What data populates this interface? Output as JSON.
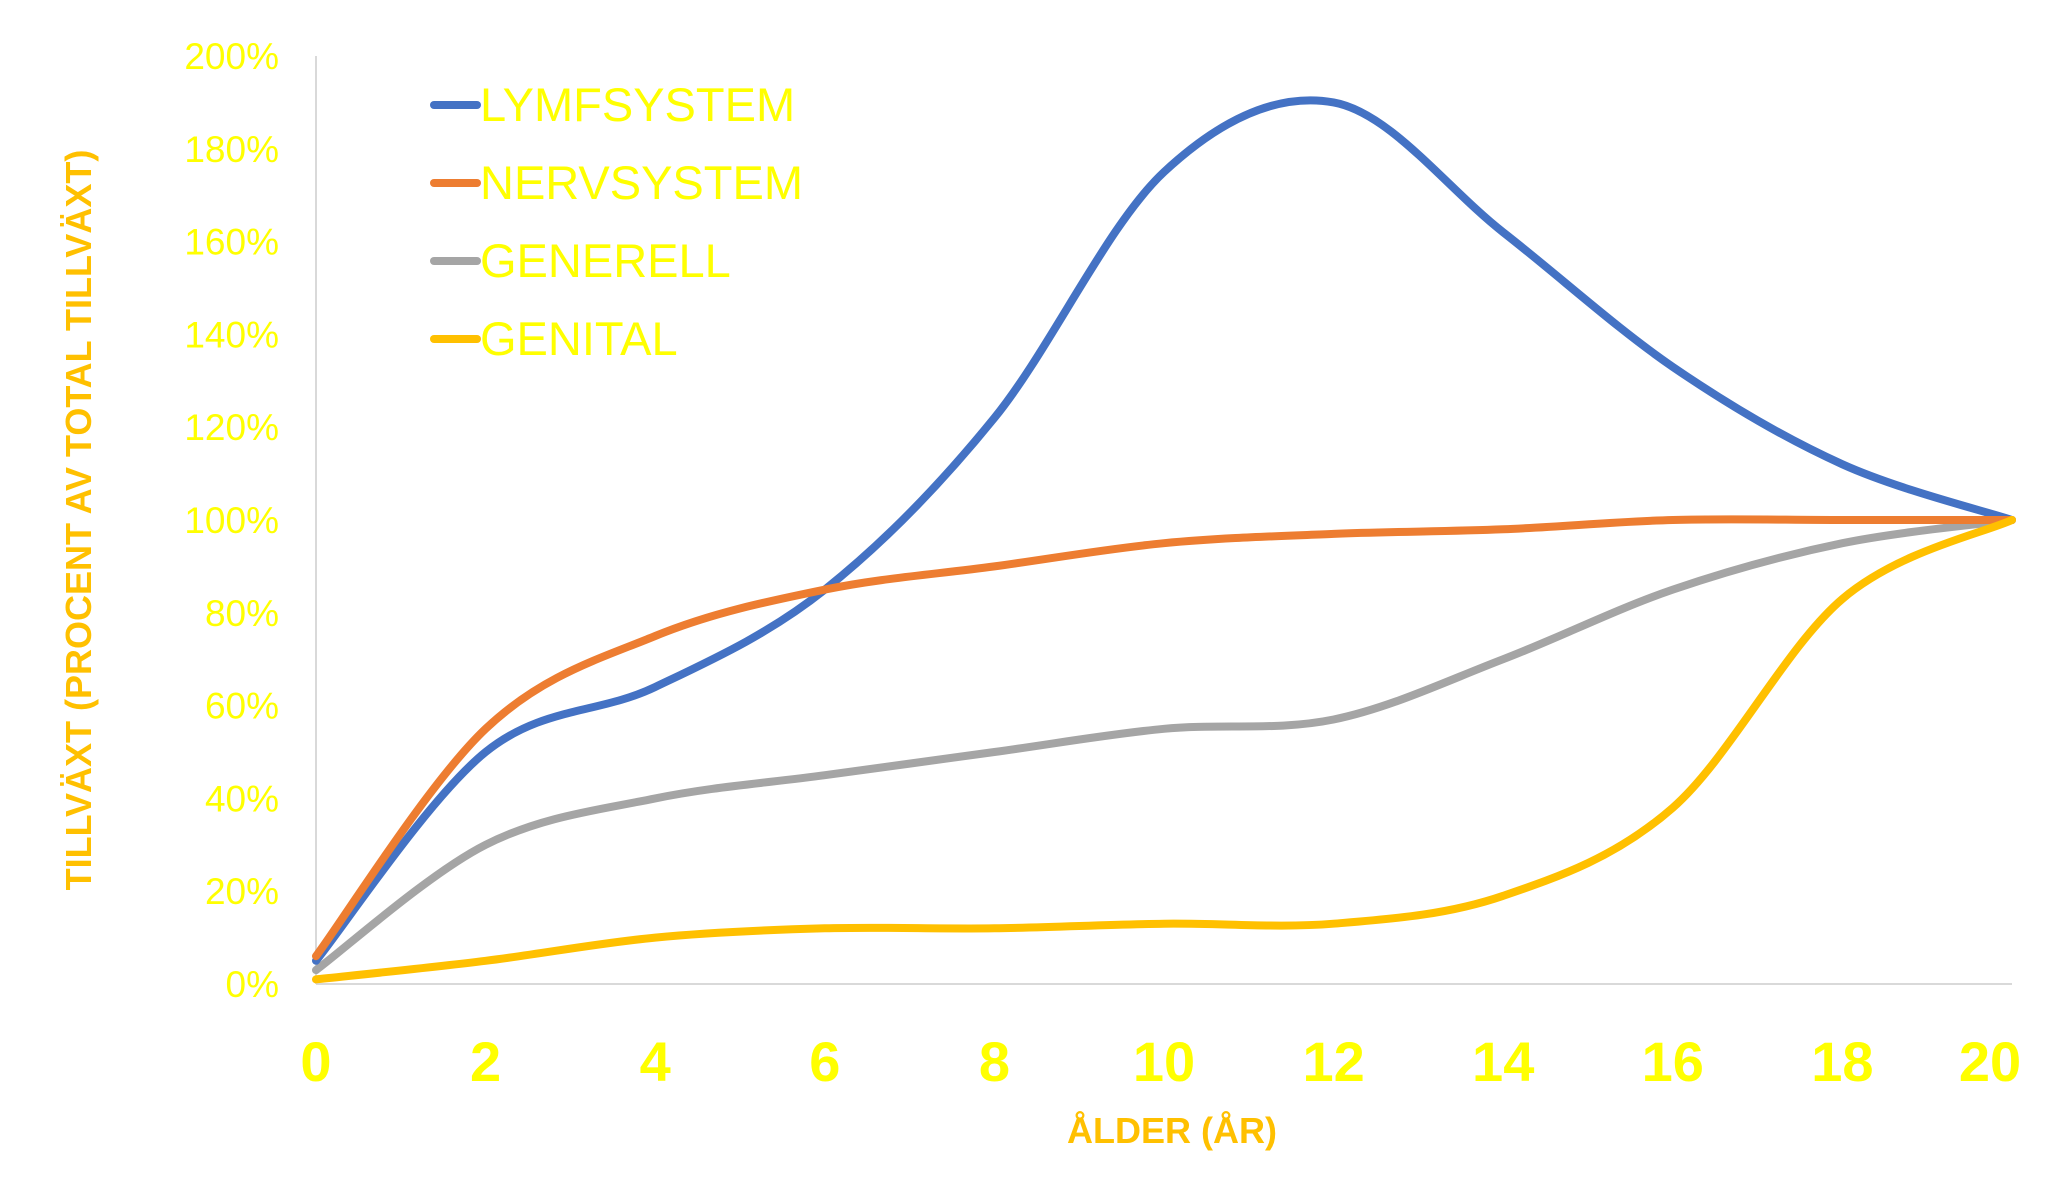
{
  "chart_data": {
    "type": "line",
    "title": "",
    "xlabel": "ÅLDER (ÅR)",
    "ylabel": "TILLVÄXT (PROCENT AV TOTAL TILLVÄXT)",
    "xlim": [
      0,
      20
    ],
    "ylim": [
      0,
      200
    ],
    "x_ticks": [
      "0",
      "2",
      "4",
      "6",
      "8",
      "10",
      "12",
      "14",
      "16",
      "18",
      "20"
    ],
    "y_ticks": [
      "0%",
      "20%",
      "40%",
      "60%",
      "80%",
      "100%",
      "120%",
      "140%",
      "160%",
      "180%",
      "200%"
    ],
    "grid": false,
    "legend_position": "top-left",
    "x": [
      0,
      2,
      4,
      6,
      8,
      10,
      12,
      14,
      16,
      18,
      20
    ],
    "series": [
      {
        "name": "LYMFSYSTEM",
        "color": "#4472C4",
        "values": [
          5,
          50,
          64,
          85,
          122,
          175,
          190,
          162,
          133,
          112,
          100
        ]
      },
      {
        "name": "NERVSYSTEM",
        "color": "#ED7D31",
        "values": [
          6,
          55,
          75,
          85,
          90,
          95,
          97,
          98,
          100,
          100,
          100
        ]
      },
      {
        "name": "GENERELL",
        "color": "#A5A5A5",
        "values": [
          3,
          30,
          40,
          45,
          50,
          55,
          57,
          70,
          85,
          95,
          100
        ]
      },
      {
        "name": "GENITAL",
        "color": "#FFC000",
        "values": [
          1,
          5,
          10,
          12,
          12,
          13,
          13,
          19,
          38,
          83,
          100
        ]
      }
    ],
    "colors": {
      "tick_text": "#FFFF00",
      "axis_title": "#FFC000",
      "legend_text": "#FFFF00",
      "axis_line": "#D9D9D9"
    }
  }
}
